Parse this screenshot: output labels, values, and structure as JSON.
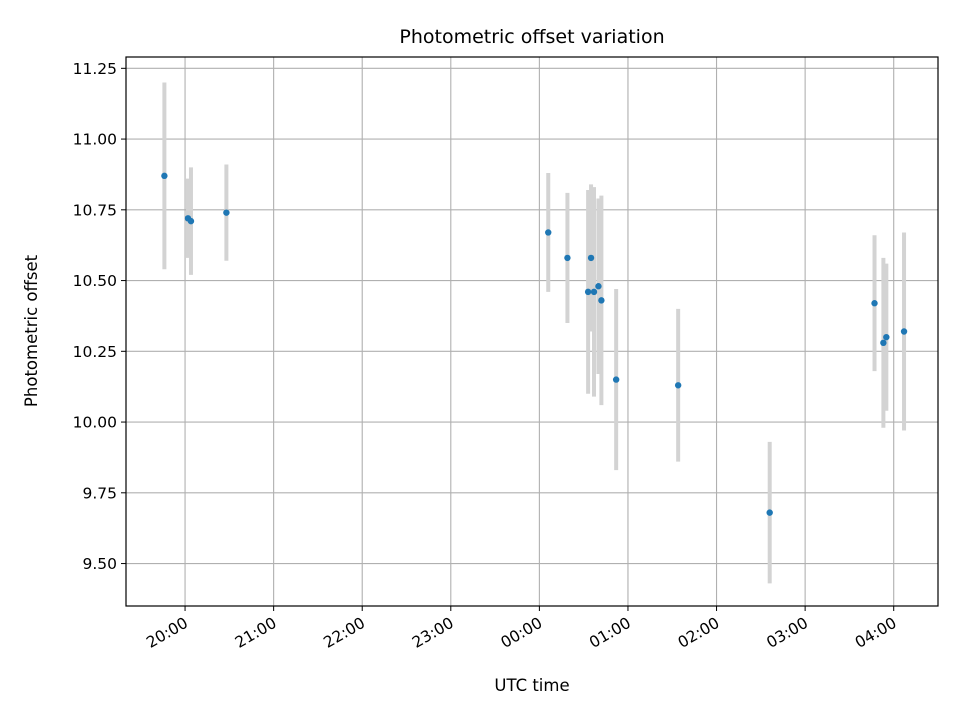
{
  "chart_data": {
    "type": "scatter",
    "title": "Photometric offset variation",
    "xlabel": "UTC time",
    "ylabel": "Photometric offset",
    "xlim": [
      "19:20",
      "04:30"
    ],
    "ylim": [
      9.35,
      11.29
    ],
    "xticks": [
      "20:00",
      "21:00",
      "22:00",
      "23:00",
      "00:00",
      "01:00",
      "02:00",
      "03:00",
      "04:00"
    ],
    "yticks": [
      "9.50",
      "9.75",
      "10.00",
      "10.25",
      "10.50",
      "10.75",
      "11.00",
      "11.25"
    ],
    "grid": true,
    "colors": {
      "points": "#1f77b4",
      "errorbars": "#d3d3d3",
      "grid": "#b0b0b0"
    },
    "points": [
      {
        "x": "19:46",
        "y": 10.87,
        "err": 0.33
      },
      {
        "x": "20:02",
        "y": 10.72,
        "err": 0.14
      },
      {
        "x": "20:04",
        "y": 10.71,
        "err": 0.19
      },
      {
        "x": "20:28",
        "y": 10.74,
        "err": 0.17
      },
      {
        "x": "00:06",
        "y": 10.67,
        "err": 0.21
      },
      {
        "x": "00:19",
        "y": 10.58,
        "err": 0.23
      },
      {
        "x": "00:33",
        "y": 10.46,
        "err": 0.36
      },
      {
        "x": "00:35",
        "y": 10.58,
        "err": 0.26
      },
      {
        "x": "00:37",
        "y": 10.46,
        "err": 0.37
      },
      {
        "x": "00:40",
        "y": 10.48,
        "err": 0.31
      },
      {
        "x": "00:42",
        "y": 10.43,
        "err": 0.37
      },
      {
        "x": "00:52",
        "y": 10.15,
        "err": 0.32
      },
      {
        "x": "01:34",
        "y": 10.13,
        "err": 0.27
      },
      {
        "x": "02:36",
        "y": 9.68,
        "err": 0.25
      },
      {
        "x": "03:47",
        "y": 10.42,
        "err": 0.24
      },
      {
        "x": "03:53",
        "y": 10.28,
        "err": 0.3
      },
      {
        "x": "03:55",
        "y": 10.3,
        "err": 0.26
      },
      {
        "x": "04:07",
        "y": 10.32,
        "err": 0.35
      }
    ]
  }
}
